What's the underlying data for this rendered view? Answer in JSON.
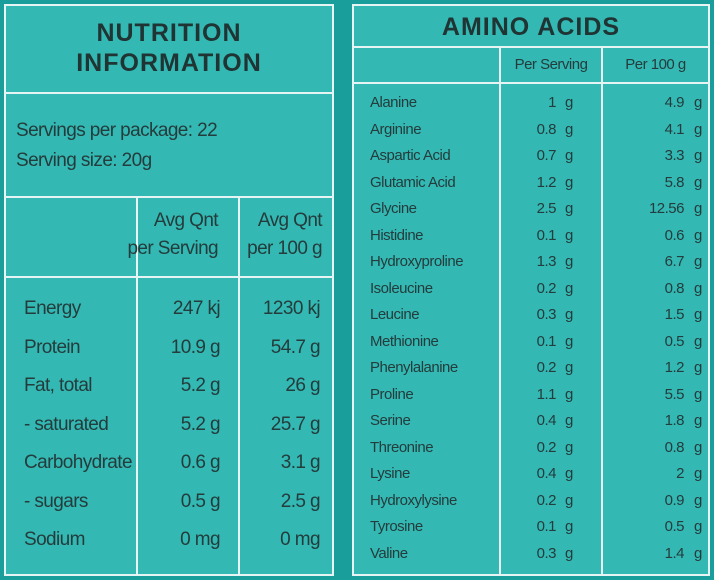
{
  "nutrition": {
    "title_line1": "NUTRITION",
    "title_line2": "INFORMATION",
    "servings_per_package": "Servings per package: 22",
    "serving_size": "Serving size: 20g",
    "col1_header_line1": "Avg Qnt",
    "col1_header_line2": "per Serving",
    "col2_header_line1": "Avg Qnt",
    "col2_header_line2": "per 100 g",
    "rows": [
      {
        "name": "Energy",
        "per_serving": "247 kj",
        "per_100g": "1230 kj"
      },
      {
        "name": "Protein",
        "per_serving": "10.9 g",
        "per_100g": "54.7 g"
      },
      {
        "name": "Fat, total",
        "per_serving": "5.2 g",
        "per_100g": "26 g"
      },
      {
        "name": "- saturated",
        "per_serving": "5.2 g",
        "per_100g": "25.7 g"
      },
      {
        "name": "Carbohydrate",
        "per_serving": "0.6 g",
        "per_100g": "3.1 g"
      },
      {
        "name": "- sugars",
        "per_serving": "0.5 g",
        "per_100g": "2.5 g"
      },
      {
        "name": "Sodium",
        "per_serving": "0 mg",
        "per_100g": "0 mg"
      }
    ]
  },
  "amino": {
    "title": "AMINO ACIDS",
    "col1_header": "Per Serving",
    "col2_header": "Per 100 g",
    "unit": "g",
    "rows": [
      {
        "name": "Alanine",
        "per_serving": "1",
        "per_100g": "4.9"
      },
      {
        "name": "Arginine",
        "per_serving": "0.8",
        "per_100g": "4.1"
      },
      {
        "name": "Aspartic Acid",
        "per_serving": "0.7",
        "per_100g": "3.3"
      },
      {
        "name": "Glutamic Acid",
        "per_serving": "1.2",
        "per_100g": "5.8"
      },
      {
        "name": "Glycine",
        "per_serving": "2.5",
        "per_100g": "12.56"
      },
      {
        "name": "Histidine",
        "per_serving": "0.1",
        "per_100g": "0.6"
      },
      {
        "name": "Hydroxyproline",
        "per_serving": "1.3",
        "per_100g": "6.7"
      },
      {
        "name": "Isoleucine",
        "per_serving": "0.2",
        "per_100g": "0.8"
      },
      {
        "name": "Leucine",
        "per_serving": "0.3",
        "per_100g": "1.5"
      },
      {
        "name": "Methionine",
        "per_serving": "0.1",
        "per_100g": "0.5"
      },
      {
        "name": "Phenylalanine",
        "per_serving": "0.2",
        "per_100g": "1.2"
      },
      {
        "name": "Proline",
        "per_serving": "1.1",
        "per_100g": "5.5"
      },
      {
        "name": "Serine",
        "per_serving": "0.4",
        "per_100g": "1.8"
      },
      {
        "name": "Threonine",
        "per_serving": "0.2",
        "per_100g": "0.8"
      },
      {
        "name": "Lysine",
        "per_serving": "0.4",
        "per_100g": "2"
      },
      {
        "name": "Hydroxylysine",
        "per_serving": "0.2",
        "per_100g": "0.9"
      },
      {
        "name": "Tyrosine",
        "per_serving": "0.1",
        "per_100g": "0.5"
      },
      {
        "name": "Valine",
        "per_serving": "0.3",
        "per_100g": "1.4"
      }
    ]
  },
  "colors": {
    "background": "#1a9e9b",
    "panel": "#33b8b4",
    "lines": "#e6f5f4",
    "text": "#243c3b"
  }
}
